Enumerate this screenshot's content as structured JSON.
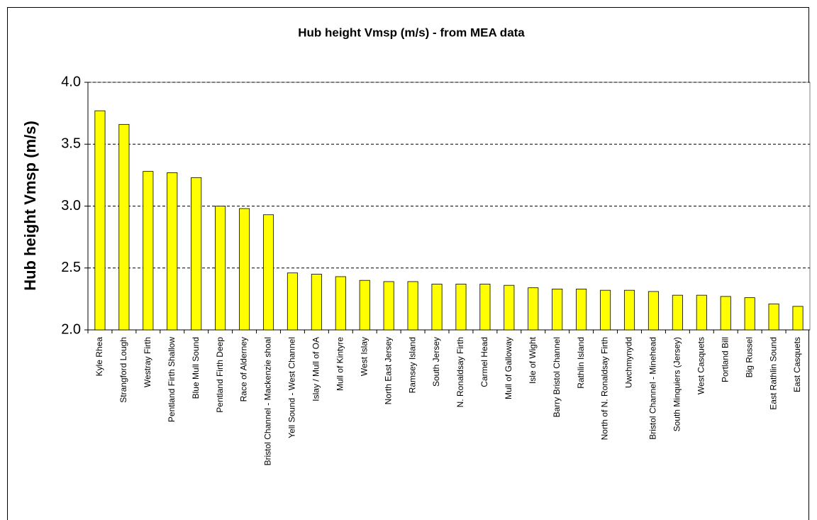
{
  "chart_data": {
    "type": "bar",
    "title": "Hub height Vmsp (m/s) - from MEA data",
    "y_label": "Hub height Vmsp (m/s)",
    "categories": [
      "Kyle Rhea",
      "Strangford Lough",
      "Westray Firth",
      "Pentland Firth Shallow",
      "Blue Mull Sound",
      "Pentland Firth Deep",
      "Race of Alderney",
      "Bristol Channel - Mackenzie shoal",
      "Yell Sound - West Channel",
      "Islay / Mull of OA",
      "Mull of Kintyre",
      "West Islay",
      "North East Jersey",
      "Ramsey Island",
      "South Jersey",
      "N. Ronaldsay Firth",
      "Carmel Head",
      "Mull of Galloway",
      "Isle of Wight",
      "Barry Bristol Channel",
      "Rathlin Island",
      "North of N. Ronaldsay Firth",
      "Uwchmynydd",
      "Bristol Channel - Minehead",
      "South Minquiers (Jersey)",
      "West Casquets",
      "Portland Bill",
      "Big Russel",
      "East Rathlin Sound",
      "East Casquets"
    ],
    "values": [
      3.77,
      3.66,
      3.28,
      3.27,
      3.23,
      3.0,
      2.98,
      2.93,
      2.46,
      2.45,
      2.43,
      2.4,
      2.39,
      2.39,
      2.37,
      2.37,
      2.37,
      2.36,
      2.34,
      2.33,
      2.33,
      2.32,
      2.32,
      2.31,
      2.28,
      2.28,
      2.27,
      2.26,
      2.21,
      2.19
    ],
    "color": "#ffff00",
    "ylim": [
      2.0,
      4.0
    ],
    "yticks": [
      {
        "value": 2.0,
        "label": "2.0"
      },
      2.5,
      {
        "value": 3.0,
        "label": "3.0"
      },
      3.5,
      {
        "value": 4.0,
        "label": "4.0"
      }
    ],
    "grid": true
  }
}
